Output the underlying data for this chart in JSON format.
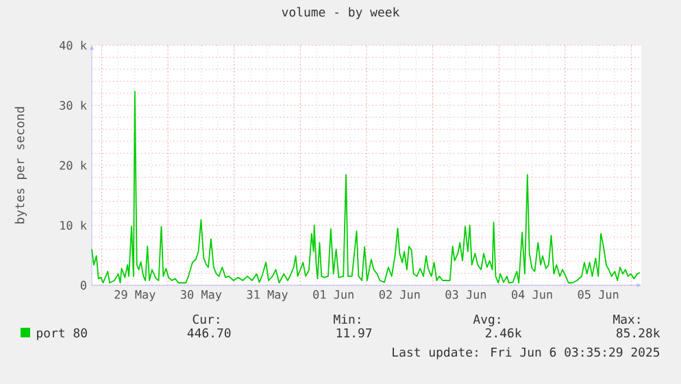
{
  "chart_data": {
    "type": "line",
    "title": "volume - by week",
    "ylabel": "bytes per second",
    "xlim": [
      "2025-05-28T20:24",
      "2025-06-06T03:36"
    ],
    "ylim": [
      0,
      40000
    ],
    "xticks": [
      {
        "value": "2025-05-29T00:00",
        "label": null
      },
      {
        "value": "2025-05-30T00:00",
        "label": null
      },
      {
        "value": "2025-05-31T00:00",
        "label": null
      },
      {
        "value": "2025-06-01T00:00",
        "label": null
      },
      {
        "value": "2025-06-02T00:00",
        "label": null
      },
      {
        "value": "2025-06-03T00:00",
        "label": null
      },
      {
        "value": "2025-06-04T00:00",
        "label": null
      },
      {
        "value": "2025-06-05T00:00",
        "label": null
      },
      {
        "value": "2025-06-06T00:00",
        "label": null
      },
      {
        "value": "2025-05-29T12:00",
        "label": "29 May"
      },
      {
        "value": "2025-05-30T12:00",
        "label": "30 May"
      },
      {
        "value": "2025-05-31T12:00",
        "label": "31 May"
      },
      {
        "value": "2025-06-01T12:00",
        "label": "01 Jun"
      },
      {
        "value": "2025-06-02T12:00",
        "label": "02 Jun"
      },
      {
        "value": "2025-06-03T12:00",
        "label": "03 Jun"
      },
      {
        "value": "2025-06-04T12:00",
        "label": "04 Jun"
      },
      {
        "value": "2025-06-05T12:00",
        "label": "05 Jun"
      }
    ],
    "yticks": [
      0,
      {
        "value": 10000,
        "label": "10 k"
      },
      {
        "value": 20000,
        "label": "20 k"
      },
      {
        "value": 30000,
        "label": "30 k"
      },
      {
        "value": 40000,
        "label": "40 k"
      }
    ],
    "grid": true,
    "legend": "bottom",
    "annotations": [
      "Cur:",
      "446.70",
      "Min:",
      "11.97",
      "Avg:",
      "2.46k",
      "Max:",
      "85.28k",
      "Last update: Fri Jun  6 03:35:29 2025"
    ],
    "series": [
      {
        "name": "port 80",
        "color": "#00cc00",
        "x": [
          "2025-05-28T20:24",
          "2025-05-28T21:07",
          "2025-05-28T22:05",
          "2025-05-28T22:48",
          "2025-05-28T23:46",
          "2025-05-29T00:29",
          "2025-05-29T02:10",
          "2025-05-29T02:53",
          "2025-05-29T04:34",
          "2025-05-29T06:00",
          "2025-05-29T06:43",
          "2025-05-29T07:12",
          "2025-05-29T08:24",
          "2025-05-29T09:22",
          "2025-05-29T09:50",
          "2025-05-29T10:48",
          "2025-05-29T11:31",
          "2025-05-29T12:00",
          "2025-05-29T12:43",
          "2025-05-29T13:26",
          "2025-05-29T14:10",
          "2025-05-29T15:07",
          "2025-05-29T15:50",
          "2025-05-29T16:34",
          "2025-05-29T17:17",
          "2025-05-29T18:14",
          "2025-05-29T19:41",
          "2025-05-29T20:38",
          "2025-05-29T21:36",
          "2025-05-29T22:19",
          "2025-05-29T23:17",
          "2025-05-30T00:14",
          "2025-05-30T01:26",
          "2025-05-30T02:38",
          "2025-05-30T03:50",
          "2025-05-30T06:29",
          "2025-05-30T07:26",
          "2025-05-30T08:53",
          "2025-05-30T10:05",
          "2025-05-30T11:02",
          "2025-05-30T12:00",
          "2025-05-30T12:58",
          "2025-05-30T13:55",
          "2025-05-30T14:38",
          "2025-05-30T15:36",
          "2025-05-30T16:34",
          "2025-05-30T17:31",
          "2025-05-30T18:29",
          "2025-05-30T19:41",
          "2025-05-30T20:53",
          "2025-05-30T22:05",
          "2025-05-30T23:46",
          "2025-05-31T01:26",
          "2025-05-31T03:07",
          "2025-05-31T04:48",
          "2025-05-31T06:29",
          "2025-05-31T08:10",
          "2025-05-31T09:07",
          "2025-05-31T10:05",
          "2025-05-31T11:31",
          "2025-05-31T12:29",
          "2025-05-31T13:55",
          "2025-05-31T15:07",
          "2025-05-31T16:19",
          "2025-05-31T18:00",
          "2025-05-31T19:26",
          "2025-05-31T20:38",
          "2025-05-31T21:36",
          "2025-05-31T22:19",
          "2025-05-31T23:02",
          "2025-06-01T00:00",
          "2025-06-01T00:58",
          "2025-06-01T01:55",
          "2025-06-01T03:07",
          "2025-06-01T04:05",
          "2025-06-01T04:48",
          "2025-06-01T05:02",
          "2025-06-01T05:46",
          "2025-06-01T06:14",
          "2025-06-01T06:58",
          "2025-06-01T07:41",
          "2025-06-01T08:38",
          "2025-06-01T10:05",
          "2025-06-01T11:02",
          "2025-06-01T12:00",
          "2025-06-01T12:58",
          "2025-06-01T13:55",
          "2025-06-01T15:36",
          "2025-06-01T16:34",
          "2025-06-01T17:17",
          "2025-06-01T18:43",
          "2025-06-01T20:24",
          "2025-06-01T21:07",
          "2025-06-01T22:19",
          "2025-06-01T23:17",
          "2025-06-02T00:14",
          "2025-06-02T01:41",
          "2025-06-02T02:38",
          "2025-06-02T03:50",
          "2025-06-02T04:48",
          "2025-06-02T06:29",
          "2025-06-02T07:55",
          "2025-06-02T09:07",
          "2025-06-02T10:19",
          "2025-06-02T11:17",
          "2025-06-02T12:00",
          "2025-06-02T12:58",
          "2025-06-02T13:41",
          "2025-06-02T14:38",
          "2025-06-02T15:22",
          "2025-06-02T16:19",
          "2025-06-02T17:02",
          "2025-06-02T18:14",
          "2025-06-02T19:26",
          "2025-06-02T20:38",
          "2025-06-02T21:36",
          "2025-06-02T22:19",
          "2025-06-02T23:31",
          "2025-06-03T00:29",
          "2025-06-03T01:26",
          "2025-06-03T02:24",
          "2025-06-03T03:36",
          "2025-06-03T06:14",
          "2025-06-03T07:12",
          "2025-06-03T07:55",
          "2025-06-03T09:07",
          "2025-06-03T09:50",
          "2025-06-03T10:48",
          "2025-06-03T11:46",
          "2025-06-03T12:43",
          "2025-06-03T13:26",
          "2025-06-03T14:10",
          "2025-06-03T15:22",
          "2025-06-03T16:19",
          "2025-06-03T17:31",
          "2025-06-03T18:29",
          "2025-06-03T19:41",
          "2025-06-03T20:38",
          "2025-06-03T21:36",
          "2025-06-03T22:05",
          "2025-06-03T22:48",
          "2025-06-03T23:46",
          "2025-06-04T00:29",
          "2025-06-04T01:41",
          "2025-06-04T02:53",
          "2025-06-04T03:36",
          "2025-06-04T05:02",
          "2025-06-04T06:29",
          "2025-06-04T07:12",
          "2025-06-04T08:24",
          "2025-06-04T09:22",
          "2025-06-04T10:19",
          "2025-06-04T11:02",
          "2025-06-04T12:00",
          "2025-06-04T12:58",
          "2025-06-04T14:10",
          "2025-06-04T15:07",
          "2025-06-04T15:50",
          "2025-06-04T17:02",
          "2025-06-04T18:00",
          "2025-06-04T18:58",
          "2025-06-04T19:55",
          "2025-06-04T20:53",
          "2025-06-04T22:05",
          "2025-06-04T23:02",
          "2025-06-05T00:14",
          "2025-06-05T01:12",
          "2025-06-05T02:38",
          "2025-06-05T04:19",
          "2025-06-05T06:00",
          "2025-06-05T06:58",
          "2025-06-05T07:55",
          "2025-06-05T08:53",
          "2025-06-05T09:50",
          "2025-06-05T11:02",
          "2025-06-05T12:00",
          "2025-06-05T12:58",
          "2025-06-05T13:55",
          "2025-06-05T14:53",
          "2025-06-05T15:50",
          "2025-06-05T16:48",
          "2025-06-05T18:00",
          "2025-06-05T18:58",
          "2025-06-05T19:55",
          "2025-06-05T20:53",
          "2025-06-05T21:50",
          "2025-06-05T22:48",
          "2025-06-05T23:46",
          "2025-06-06T00:58",
          "2025-06-06T02:10",
          "2025-06-06T03:07"
        ],
        "values": [
          6000,
          3400,
          4900,
          1100,
          1300,
          400,
          2300,
          400,
          800,
          1900,
          400,
          2800,
          1300,
          3400,
          1500,
          9800,
          1500,
          32300,
          3400,
          2600,
          3900,
          1500,
          800,
          6500,
          800,
          2600,
          1100,
          800,
          9800,
          1500,
          2800,
          1300,
          800,
          1100,
          400,
          400,
          1500,
          3800,
          4300,
          5600,
          10900,
          4500,
          3400,
          3000,
          7700,
          3000,
          1900,
          1500,
          3000,
          1300,
          1500,
          800,
          1300,
          800,
          1500,
          800,
          1900,
          500,
          1500,
          3800,
          800,
          1500,
          2600,
          400,
          1900,
          800,
          1900,
          3000,
          4900,
          1500,
          2600,
          3800,
          1500,
          2500,
          8600,
          5600,
          10000,
          3400,
          1100,
          7100,
          1500,
          1300,
          1500,
          9400,
          1900,
          6000,
          1300,
          1500,
          18400,
          1500,
          1500,
          9000,
          1500,
          800,
          6400,
          800,
          4300,
          2600,
          1900,
          800,
          500,
          3000,
          1500,
          4900,
          9500,
          5300,
          3800,
          5600,
          2600,
          6500,
          5800,
          1900,
          1500,
          2800,
          1500,
          4900,
          2800,
          1500,
          3800,
          800,
          1500,
          800,
          800,
          6500,
          4100,
          5300,
          7100,
          4100,
          9800,
          5600,
          10000,
          3400,
          5300,
          3400,
          2600,
          5300,
          3000,
          4100,
          2600,
          10500,
          1500,
          400,
          1900,
          500,
          1500,
          400,
          500,
          2300,
          400,
          8800,
          1900,
          18400,
          5300,
          2800,
          2300,
          7100,
          3400,
          4900,
          2800,
          3400,
          8300,
          1900,
          3400,
          1500,
          2600,
          1500,
          400,
          400,
          800,
          1500,
          3800,
          1900,
          3800,
          1500,
          4500,
          1500,
          8600,
          6400,
          3400,
          2600,
          1500,
          2300,
          800,
          3000,
          1900,
          2600,
          1500,
          1900,
          1100,
          1900,
          2100
        ]
      }
    ]
  }
}
